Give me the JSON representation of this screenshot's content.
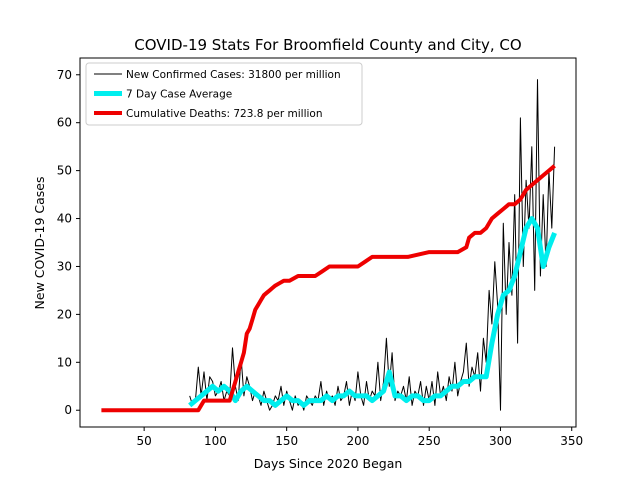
{
  "chart_data": {
    "type": "line",
    "title": "COVID-19 Stats For Broomfield County and City, CO",
    "xlabel": "Days Since 2020 Began",
    "ylabel": "New COVID-19 Cases",
    "xlim": [
      5,
      353
    ],
    "ylim": [
      -3.5,
      73.5
    ],
    "xticks": [
      50,
      100,
      150,
      200,
      250,
      300,
      350
    ],
    "yticks": [
      0,
      10,
      20,
      30,
      40,
      50,
      60,
      70
    ],
    "grid": false,
    "legend_position": "top-left",
    "series": [
      {
        "name": "New Confirmed Cases: 31800 per million",
        "color": "#000000",
        "x": [
          82,
          84,
          86,
          88,
          90,
          92,
          94,
          96,
          98,
          100,
          102,
          104,
          106,
          108,
          110,
          112,
          114,
          116,
          118,
          120,
          122,
          124,
          126,
          128,
          130,
          132,
          134,
          136,
          138,
          140,
          142,
          144,
          146,
          148,
          150,
          152,
          154,
          156,
          158,
          160,
          162,
          164,
          166,
          168,
          170,
          172,
          174,
          176,
          178,
          180,
          182,
          184,
          186,
          188,
          190,
          192,
          194,
          196,
          198,
          200,
          202,
          204,
          206,
          208,
          210,
          212,
          214,
          216,
          218,
          220,
          222,
          224,
          226,
          228,
          230,
          232,
          234,
          236,
          238,
          240,
          242,
          244,
          246,
          248,
          250,
          252,
          254,
          256,
          258,
          260,
          262,
          264,
          266,
          268,
          270,
          272,
          274,
          276,
          278,
          280,
          282,
          284,
          286,
          288,
          290,
          292,
          294,
          296,
          298,
          300,
          302,
          304,
          306,
          308,
          310,
          312,
          314,
          316,
          318,
          320,
          322,
          324,
          326,
          328,
          330,
          332,
          334,
          336,
          338
        ],
        "y": [
          3,
          1,
          2,
          9,
          3,
          8,
          2,
          7,
          6,
          3,
          4,
          6,
          2,
          4,
          3,
          13,
          5,
          2,
          11,
          3,
          7,
          5,
          2,
          4,
          3,
          1,
          4,
          2,
          0,
          1,
          3,
          2,
          5,
          1,
          4,
          2,
          0,
          3,
          1,
          2,
          0,
          3,
          2,
          1,
          3,
          2,
          6,
          1,
          4,
          2,
          3,
          1,
          5,
          2,
          3,
          6,
          1,
          4,
          2,
          8,
          3,
          1,
          6,
          2,
          4,
          3,
          10,
          2,
          6,
          15,
          5,
          12,
          2,
          4,
          3,
          5,
          2,
          7,
          1,
          4,
          3,
          6,
          1,
          5,
          2,
          6,
          1,
          8,
          3,
          5,
          2,
          7,
          4,
          10,
          3,
          6,
          8,
          14,
          5,
          9,
          7,
          12,
          4,
          15,
          10,
          25,
          18,
          31,
          22,
          0,
          39,
          20,
          35,
          24,
          45,
          14,
          61,
          30,
          48,
          38,
          55,
          25,
          69,
          28,
          45,
          30,
          50,
          38,
          55
        ],
        "line_width": 1
      },
      {
        "name": "7 Day Case Average",
        "color": "#00eeee",
        "x": [
          82,
          86,
          90,
          94,
          98,
          102,
          106,
          110,
          114,
          118,
          122,
          126,
          130,
          134,
          138,
          142,
          146,
          150,
          154,
          158,
          162,
          166,
          170,
          174,
          178,
          182,
          186,
          190,
          194,
          198,
          202,
          206,
          210,
          214,
          218,
          222,
          226,
          230,
          234,
          238,
          242,
          246,
          250,
          254,
          258,
          262,
          266,
          270,
          274,
          278,
          282,
          286,
          290,
          294,
          298,
          302,
          306,
          310,
          314,
          318,
          322,
          326,
          330,
          334,
          338
        ],
        "y": [
          1,
          2,
          3,
          4,
          5,
          4,
          5,
          4,
          2,
          4,
          5,
          4,
          3,
          2,
          2,
          1,
          2,
          3,
          2,
          2,
          1,
          2,
          2,
          2,
          3,
          2,
          3,
          3,
          4,
          3,
          3,
          3,
          2,
          3,
          4,
          8,
          3,
          3,
          2,
          3,
          3,
          2,
          2,
          3,
          3,
          4,
          5,
          5,
          6,
          6,
          7,
          7,
          7,
          14,
          20,
          24,
          25,
          28,
          33,
          38,
          40,
          38,
          30,
          34,
          37
        ],
        "line_width": 5
      },
      {
        "name": "Cumulative Deaths: 723.8 per million",
        "color": "#ee0000",
        "x": [
          20,
          88,
          92,
          110,
          112,
          114,
          116,
          118,
          120,
          122,
          124,
          126,
          128,
          130,
          132,
          134,
          136,
          138,
          140,
          142,
          145,
          148,
          152,
          158,
          164,
          170,
          175,
          180,
          190,
          200,
          205,
          210,
          220,
          235,
          250,
          260,
          270,
          276,
          278,
          282,
          286,
          290,
          294,
          298,
          302,
          306,
          310,
          314,
          318,
          322,
          326,
          330,
          334,
          338
        ],
        "y": [
          0,
          0,
          2,
          2,
          4,
          6,
          8,
          10,
          12,
          16,
          17,
          19,
          21,
          22,
          23,
          24,
          24.5,
          25,
          25.5,
          26,
          26.5,
          27,
          27,
          28,
          28,
          28,
          29,
          30,
          30,
          30,
          31,
          32,
          32,
          32,
          33,
          33,
          33,
          34,
          36,
          37,
          37,
          38,
          40,
          41,
          42,
          43,
          43,
          44,
          46,
          47,
          48,
          49,
          50,
          51
        ],
        "line_width": 4
      }
    ]
  }
}
